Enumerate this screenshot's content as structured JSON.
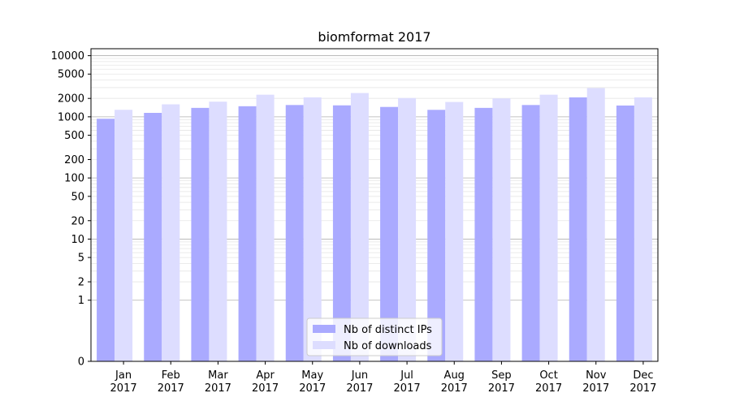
{
  "chart_data": {
    "type": "bar",
    "title": "biomformat 2017",
    "xlabel": "",
    "ylabel": "",
    "y_scale": "symlog",
    "ylim": [
      0,
      13000
    ],
    "y_ticks": [
      0,
      1,
      2,
      5,
      10,
      20,
      50,
      100,
      200,
      500,
      1000,
      2000,
      5000,
      10000
    ],
    "y_tick_labels": [
      "0",
      "1",
      "2",
      "5",
      "10",
      "20",
      "50",
      "100",
      "200",
      "500",
      "1000",
      "2000",
      "5000",
      "10000"
    ],
    "categories": [
      "Jan\n2017",
      "Feb\n2017",
      "Mar\n2017",
      "Apr\n2017",
      "May\n2017",
      "Jun\n2017",
      "Jul\n2017",
      "Aug\n2017",
      "Sep\n2017",
      "Oct\n2017",
      "Nov\n2017",
      "Dec\n2017"
    ],
    "series": [
      {
        "name": "Nb of distinct IPs",
        "color": "#aaaaff",
        "values": [
          930,
          1160,
          1400,
          1490,
          1560,
          1540,
          1450,
          1300,
          1400,
          1560,
          2080,
          1530
        ]
      },
      {
        "name": "Nb of downloads",
        "color": "#ddddff",
        "values": [
          1300,
          1600,
          1770,
          2300,
          2080,
          2450,
          2030,
          1750,
          2000,
          2300,
          2950,
          2080
        ]
      }
    ],
    "grid": true,
    "legend_position": "bottom-center"
  }
}
